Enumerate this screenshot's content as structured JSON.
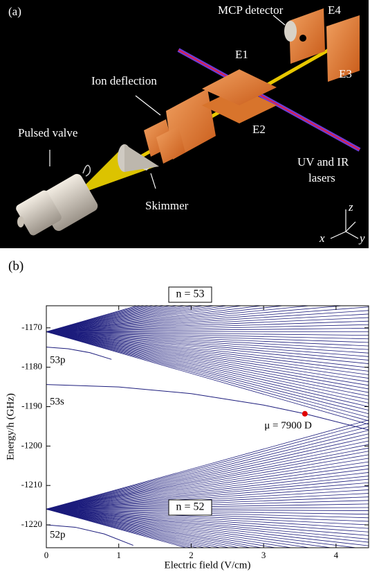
{
  "figure_a": {
    "panel_label": "(a)",
    "mcp": "MCP detector",
    "e4": "E4",
    "e1": "E1",
    "e3": "E3",
    "ion": "Ion deflection",
    "e2": "E2",
    "valve": "Pulsed valve",
    "lasers_1": "UV and IR",
    "lasers_2": "lasers",
    "skimmer": "Skimmer",
    "axis_z": "z",
    "axis_x": "x",
    "axis_y": "y"
  },
  "chart_data": {
    "type": "line",
    "panel_label": "(b)",
    "xlabel": "Electric field (V/cm)",
    "ylabel": "Energy/h  (GHz)",
    "xlim": [
      0,
      4.45
    ],
    "ylim": [
      -1225.8,
      -1164.4
    ],
    "xticks": [
      0,
      1,
      2,
      3,
      4
    ],
    "yticks": [
      -1170,
      -1180,
      -1190,
      -1200,
      -1210,
      -1220
    ],
    "manifolds": [
      {
        "name": "n = 53",
        "color": "#1c1c7c",
        "x": [
          0,
          4.45
        ],
        "start": -1171,
        "ends": [
          -1194.5,
          -1193.6,
          -1192.7,
          -1191.8,
          -1190.9,
          -1190.0,
          -1189.1,
          -1188.2,
          -1187.3,
          -1186.4,
          -1185.5,
          -1184.6,
          -1183.7,
          -1182.8,
          -1181.9,
          -1181.0,
          -1180.1,
          -1179.1,
          -1178.2,
          -1177.3,
          -1176.4,
          -1175.5,
          -1174.6,
          -1173.7,
          -1172.8,
          -1171.9,
          -1171.0,
          -1170.1,
          -1169.2,
          -1168.3,
          -1167.4,
          -1166.5,
          -1165.6,
          -1164.7,
          -1163.8,
          -1162.9,
          -1162.0,
          -1161.1,
          -1160.1,
          -1159.2,
          -1158.3,
          -1157.4,
          -1156.5,
          -1155.6,
          -1154.7,
          -1153.8,
          -1152.9,
          -1152.0,
          -1151.1,
          -1150.2,
          -1149.3,
          -1148.4,
          -1147.5
        ]
      },
      {
        "name": "n = 52",
        "color": "#1c1c7c",
        "x": [
          0,
          4.45
        ],
        "start": -1216,
        "ends": [
          -1238.6,
          -1237.8,
          -1236.9,
          -1236.0,
          -1235.1,
          -1234.2,
          -1233.3,
          -1232.4,
          -1231.5,
          -1230.7,
          -1229.8,
          -1228.9,
          -1228.0,
          -1227.1,
          -1226.2,
          -1225.3,
          -1224.4,
          -1223.6,
          -1222.7,
          -1221.8,
          -1220.9,
          -1220.0,
          -1219.1,
          -1218.2,
          -1217.3,
          -1216.4,
          -1215.6,
          -1214.7,
          -1213.8,
          -1212.9,
          -1212.0,
          -1211.1,
          -1210.2,
          -1209.3,
          -1208.4,
          -1207.6,
          -1206.7,
          -1205.8,
          -1204.9,
          -1204.0,
          -1203.1,
          -1202.2,
          -1201.3,
          -1200.5,
          -1199.6,
          -1198.7,
          -1197.8,
          -1196.9,
          -1196.0,
          -1195.1,
          -1194.2,
          -1193.4
        ]
      }
    ],
    "series": [
      {
        "name": "53p",
        "color": "#1c1c7c",
        "x": [
          0,
          0.3,
          0.6,
          0.9
        ],
        "values": [
          -1174.9,
          -1175.3,
          -1176.3,
          -1178.0
        ]
      },
      {
        "name": "53s",
        "color": "#1c1c7c",
        "x": [
          0,
          1,
          2,
          3,
          3.57,
          4.45
        ],
        "values": [
          -1184.4,
          -1185.0,
          -1186.7,
          -1189.6,
          -1191.8,
          -1195.9
        ]
      },
      {
        "name": "52p",
        "color": "#1c1c7c",
        "x": [
          0,
          0.4,
          0.8,
          1.2
        ],
        "values": [
          -1220.0,
          -1220.6,
          -1222.3,
          -1225.2
        ]
      }
    ],
    "annotation": {
      "text": "μ = 7900 D",
      "x": 3.57,
      "y": -1191.8,
      "color": "#e00000"
    }
  }
}
